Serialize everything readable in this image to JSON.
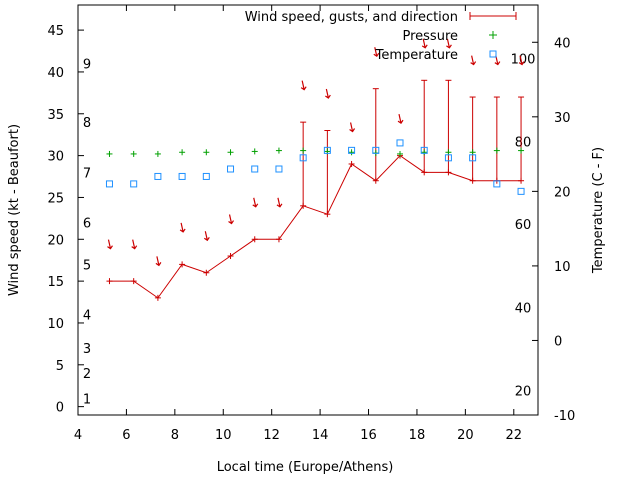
{
  "chart_data": {
    "type": "line",
    "xlabel": "Local time (Europe/Athens)",
    "ylabel_left": "Wind speed (kt - Beaufort)",
    "ylabel_right": "Temperature (C - F)",
    "xlim": [
      4,
      23
    ],
    "ylim_left": [
      -1,
      48
    ],
    "ylim_right": [
      -10,
      45
    ],
    "x_ticks": [
      4,
      6,
      8,
      10,
      12,
      14,
      16,
      18,
      20,
      22
    ],
    "y_left_ticks": [
      0,
      5,
      10,
      15,
      20,
      25,
      30,
      35,
      40,
      45
    ],
    "y_right_ticks": [
      -10,
      0,
      10,
      20,
      30,
      40
    ],
    "beaufort_labels": [
      {
        "label": "1",
        "wind": 1
      },
      {
        "label": "2",
        "wind": 4
      },
      {
        "label": "3",
        "wind": 7
      },
      {
        "label": "4",
        "wind": 11
      },
      {
        "label": "5",
        "wind": 17
      },
      {
        "label": "6",
        "wind": 22
      },
      {
        "label": "7",
        "wind": 28
      },
      {
        "label": "8",
        "wind": 34
      },
      {
        "label": "9",
        "wind": 41
      }
    ],
    "fahrenheit_labels": [
      {
        "label": "20",
        "temp": -6.7
      },
      {
        "label": "40",
        "temp": 4.4
      },
      {
        "label": "60",
        "temp": 15.6
      },
      {
        "label": "80",
        "temp": 26.7
      },
      {
        "label": "100",
        "temp": 37.8
      }
    ],
    "legend": [
      {
        "name": "Wind speed, gusts, and direction",
        "color": "#cc0000"
      },
      {
        "name": "Pressure",
        "color": "#00a000"
      },
      {
        "name": "Temperature",
        "color": "#1e90ff"
      }
    ],
    "wind": {
      "x": [
        5.3,
        6.3,
        7.3,
        8.3,
        9.3,
        10.3,
        11.3,
        12.3,
        13.3,
        14.3,
        15.3,
        16.3,
        17.3,
        18.3,
        19.3,
        20.3,
        21.3,
        22.3
      ],
      "speed": [
        15,
        15,
        13,
        17,
        16,
        18,
        20,
        20,
        24,
        23,
        29,
        27,
        30,
        28,
        28,
        27,
        27,
        27
      ],
      "gust": [
        null,
        null,
        null,
        null,
        null,
        null,
        null,
        null,
        34,
        33,
        null,
        38,
        null,
        39,
        39,
        37,
        37,
        37
      ],
      "direction_arrow_y": [
        19,
        19,
        17,
        21,
        20,
        22,
        24,
        24,
        38,
        37,
        33,
        42,
        34,
        43,
        43,
        41,
        41,
        41
      ],
      "color": "#cc0000"
    },
    "pressure": {
      "x": [
        5.3,
        6.3,
        7.3,
        8.3,
        9.3,
        10.3,
        11.3,
        12.3,
        13.3,
        14.3,
        15.3,
        16.3,
        17.3,
        18.3,
        19.3,
        20.3,
        21.3,
        22.3
      ],
      "y_wind_axis": [
        30.2,
        30.2,
        30.2,
        30.4,
        30.4,
        30.4,
        30.5,
        30.6,
        30.6,
        30.5,
        30.4,
        30.3,
        30.2,
        30.4,
        30.4,
        30.4,
        30.6,
        30.6
      ],
      "color": "#00a000"
    },
    "temperature": {
      "x": [
        5.3,
        6.3,
        7.3,
        8.3,
        9.3,
        10.3,
        11.3,
        12.3,
        13.3,
        14.3,
        15.3,
        16.3,
        17.3,
        18.3,
        19.3,
        20.3,
        21.3,
        22.3
      ],
      "y": [
        21,
        21,
        22,
        22,
        22,
        23,
        23,
        23,
        24.5,
        25.5,
        25.5,
        25.5,
        26.5,
        25.5,
        24.5,
        24.5,
        21,
        20
      ],
      "color": "#1e90ff"
    }
  }
}
